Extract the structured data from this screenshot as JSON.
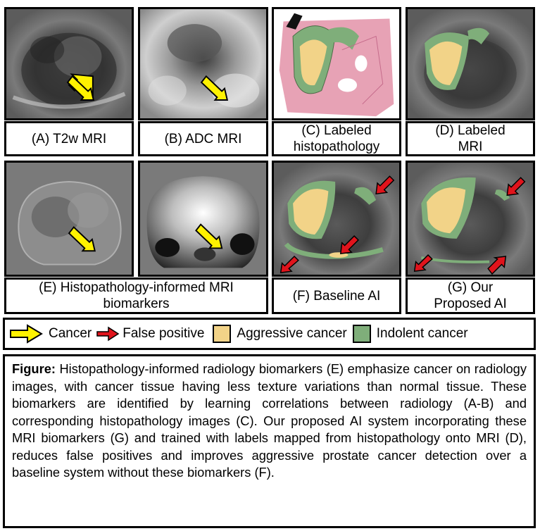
{
  "panels": {
    "a": "(A) T2w MRI",
    "b": "(B) ADC MRI",
    "c": "(C) Labeled histopathology",
    "d": "(D) Labeled MRI",
    "e": "(E) Histopathology-informed MRI biomarkers",
    "f": "(F) Baseline AI",
    "g": "(G) Our Proposed AI"
  },
  "legend": {
    "cancer": "Cancer",
    "false_positive": "False positive",
    "aggressive": "Aggressive cancer",
    "indolent": "Indolent cancer"
  },
  "caption": {
    "label": "Figure:",
    "text": " Histopathology-informed radiology biomarkers (E) emphasize cancer on radiology images, with cancer tissue having less texture variations than normal tissue. These biomarkers are identified by learning correlations between radiology (A-B) and corresponding histopathology images (C). Our proposed AI system incorporating these MRI biomarkers (G) and trained with labels mapped from histopathology onto MRI (D), reduces false positives and improves aggressive prostate cancer detection over a baseline system without these biomarkers (F)."
  },
  "colors": {
    "aggressive": "#f2d388",
    "indolent": "#7fae7a",
    "cancer_arrow": "#fff200",
    "fp_arrow": "#e0141c"
  }
}
